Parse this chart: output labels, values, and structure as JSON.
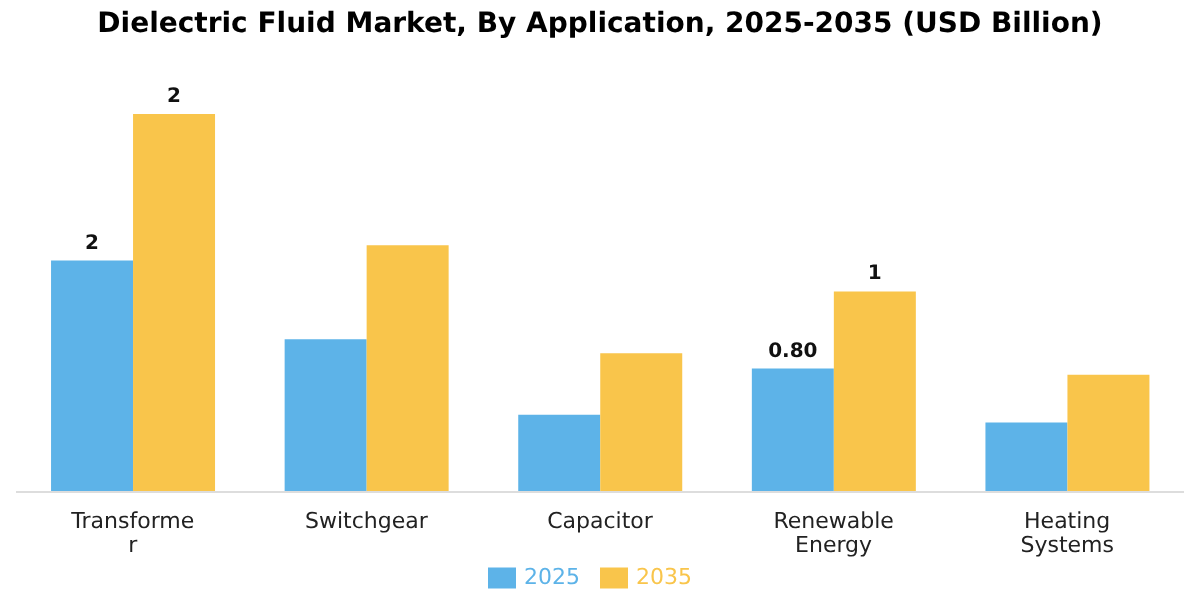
{
  "chart_data": {
    "type": "bar",
    "title": "Dielectric Fluid Market, By Application, 2025-2035 (USD Billion)",
    "categories": [
      "Transformer",
      "Switchgear",
      "Capacitor",
      "Renewable Energy",
      "Heating Systems"
    ],
    "series": [
      {
        "name": "2025",
        "color": "#5db3e8",
        "values": [
          1.5,
          0.99,
          0.5,
          0.8,
          0.45
        ],
        "value_labels": [
          "2",
          null,
          null,
          "0.80",
          null
        ]
      },
      {
        "name": "2035",
        "color": "#f9c54b",
        "values": [
          2.45,
          1.6,
          0.9,
          1.3,
          0.76
        ],
        "value_labels": [
          "2",
          null,
          null,
          "1",
          null
        ]
      }
    ],
    "legend": "bottom",
    "grid": false
  }
}
